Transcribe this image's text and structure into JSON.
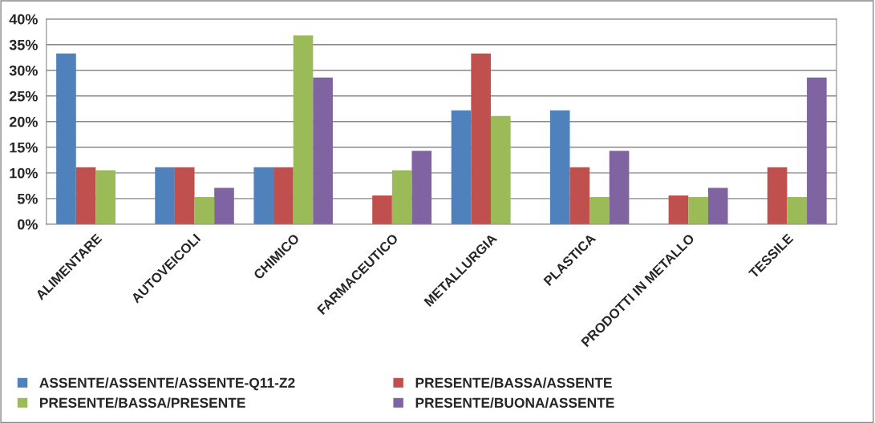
{
  "chart_data": {
    "type": "bar",
    "categories": [
      "ALIMENTARE",
      "AUTOVEICOLI",
      "CHIMICO",
      "FARMACEUTICO",
      "METALLURGIA",
      "PLASTICA",
      "PRODOTTI IN METALLO",
      "TESSILE"
    ],
    "series": [
      {
        "name": "ASSENTE/ASSENTE/ASSENTE-Q11-Z2",
        "color": "#4f81bd",
        "values": [
          33.3,
          11.1,
          11.1,
          null,
          22.2,
          22.2,
          null,
          null
        ]
      },
      {
        "name": "PRESENTE/BASSA/ASSENTE",
        "color": "#c0504d",
        "values": [
          11.1,
          11.1,
          11.1,
          5.6,
          33.3,
          11.1,
          5.6,
          11.1
        ]
      },
      {
        "name": "PRESENTE/BASSA/PRESENTE",
        "color": "#9bbb59",
        "values": [
          10.5,
          5.3,
          36.8,
          10.5,
          21.1,
          5.3,
          5.3,
          5.3
        ]
      },
      {
        "name": "PRESENTE/BUONA/ASSENTE",
        "color": "#8064a2",
        "values": [
          null,
          7.1,
          28.6,
          14.3,
          null,
          14.3,
          7.1,
          28.6
        ]
      }
    ],
    "ylim": [
      0,
      40
    ],
    "yticks": [
      {
        "value": 0,
        "label": "0%"
      },
      {
        "value": 5,
        "label": "5%"
      },
      {
        "value": 10,
        "label": "10%"
      },
      {
        "value": 15,
        "label": "15%"
      },
      {
        "value": 20,
        "label": "20%"
      },
      {
        "value": 25,
        "label": "25%"
      },
      {
        "value": 30,
        "label": "30%"
      },
      {
        "value": 35,
        "label": "35%"
      },
      {
        "value": 40,
        "label": "40%"
      }
    ],
    "grid": "y",
    "legend": "bottom"
  }
}
